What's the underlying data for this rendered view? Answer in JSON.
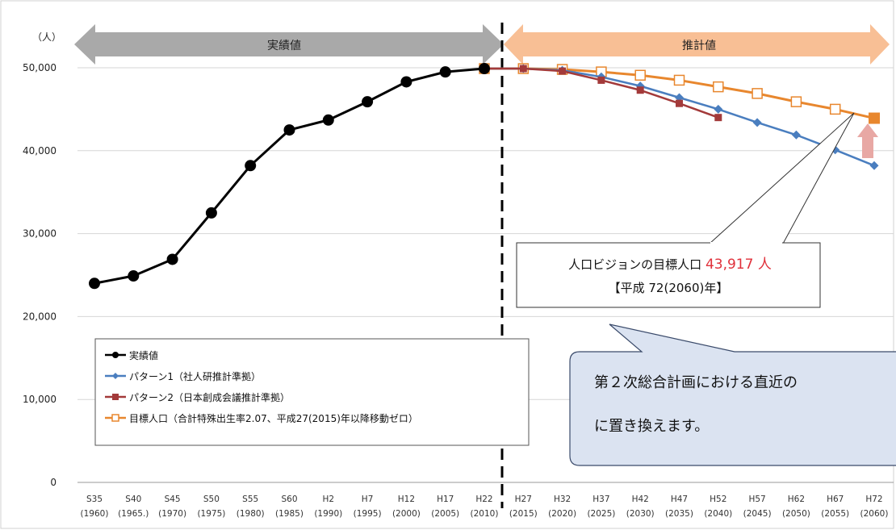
{
  "chart_data": {
    "type": "line",
    "y_unit": "（人）",
    "ylim": [
      0,
      50000
    ],
    "y_ticks": [
      "0",
      "10,000",
      "20,000",
      "30,000",
      "40,000",
      "50,000"
    ],
    "x_labels": [
      {
        "era": "S35",
        "year": "(1960)"
      },
      {
        "era": "S40",
        "year": "(1965.)"
      },
      {
        "era": "S45",
        "year": "(1970)"
      },
      {
        "era": "S50",
        "year": "(1975)"
      },
      {
        "era": "S55",
        "year": "(1980)"
      },
      {
        "era": "S60",
        "year": "(1985)"
      },
      {
        "era": "H2",
        "year": "(1990)"
      },
      {
        "era": "H7",
        "year": "(1995)"
      },
      {
        "era": "H12",
        "year": "(2000)"
      },
      {
        "era": "H17",
        "year": "(2005)"
      },
      {
        "era": "H22",
        "year": "(2010)"
      },
      {
        "era": "H27",
        "year": "(2015)"
      },
      {
        "era": "H32",
        "year": "(2020)"
      },
      {
        "era": "H37",
        "year": "(2025)"
      },
      {
        "era": "H42",
        "year": "(2030)"
      },
      {
        "era": "H47",
        "year": "(2035)"
      },
      {
        "era": "H52",
        "year": "(2040)"
      },
      {
        "era": "H57",
        "year": "(2045)"
      },
      {
        "era": "H62",
        "year": "(2050)"
      },
      {
        "era": "H67",
        "year": "(2055)"
      },
      {
        "era": "H72",
        "year": "(2060)"
      }
    ],
    "grid": "horizontal",
    "banners": {
      "actual": "実績値",
      "projected": "推計値"
    },
    "series": [
      {
        "name": "実績値",
        "color": "#000000",
        "marker": "circle",
        "start": 0,
        "values": [
          24000,
          24900,
          26900,
          32500,
          38200,
          42500,
          43700,
          45900,
          48300,
          49500,
          49900
        ]
      },
      {
        "name": "パターン1（社人研推計準拠）",
        "color": "#4a7ebf",
        "marker": "diamond",
        "start": 10,
        "values": [
          49900,
          49900,
          49700,
          48900,
          47800,
          46400,
          45000,
          43400,
          41900,
          40100,
          38200
        ]
      },
      {
        "name": "パターン2（日本創成会議推計準拠）",
        "color": "#a33a3a",
        "marker": "square",
        "start": 10,
        "values": [
          49900,
          49900,
          49600,
          48500,
          47300,
          45700,
          44000
        ]
      },
      {
        "name": "目標人口（合計特殊出生率2.07、平成27(2015)年以降移動ゼロ）",
        "color": "#e8872e",
        "marker": "hollow-square",
        "start": 10,
        "values": [
          49900,
          49900,
          49800,
          49500,
          49100,
          48500,
          47700,
          46900,
          45900,
          45000,
          43917
        ]
      }
    ],
    "annotations": {
      "callout_prefix": "人口ビジョンの目標人口 ",
      "callout_value": "43,917 人",
      "callout_line2": "【平成 72(2060)年】",
      "bubble_line1": "第２次総合計画における直近の",
      "bubble_line2": "に置き換えます。"
    }
  }
}
